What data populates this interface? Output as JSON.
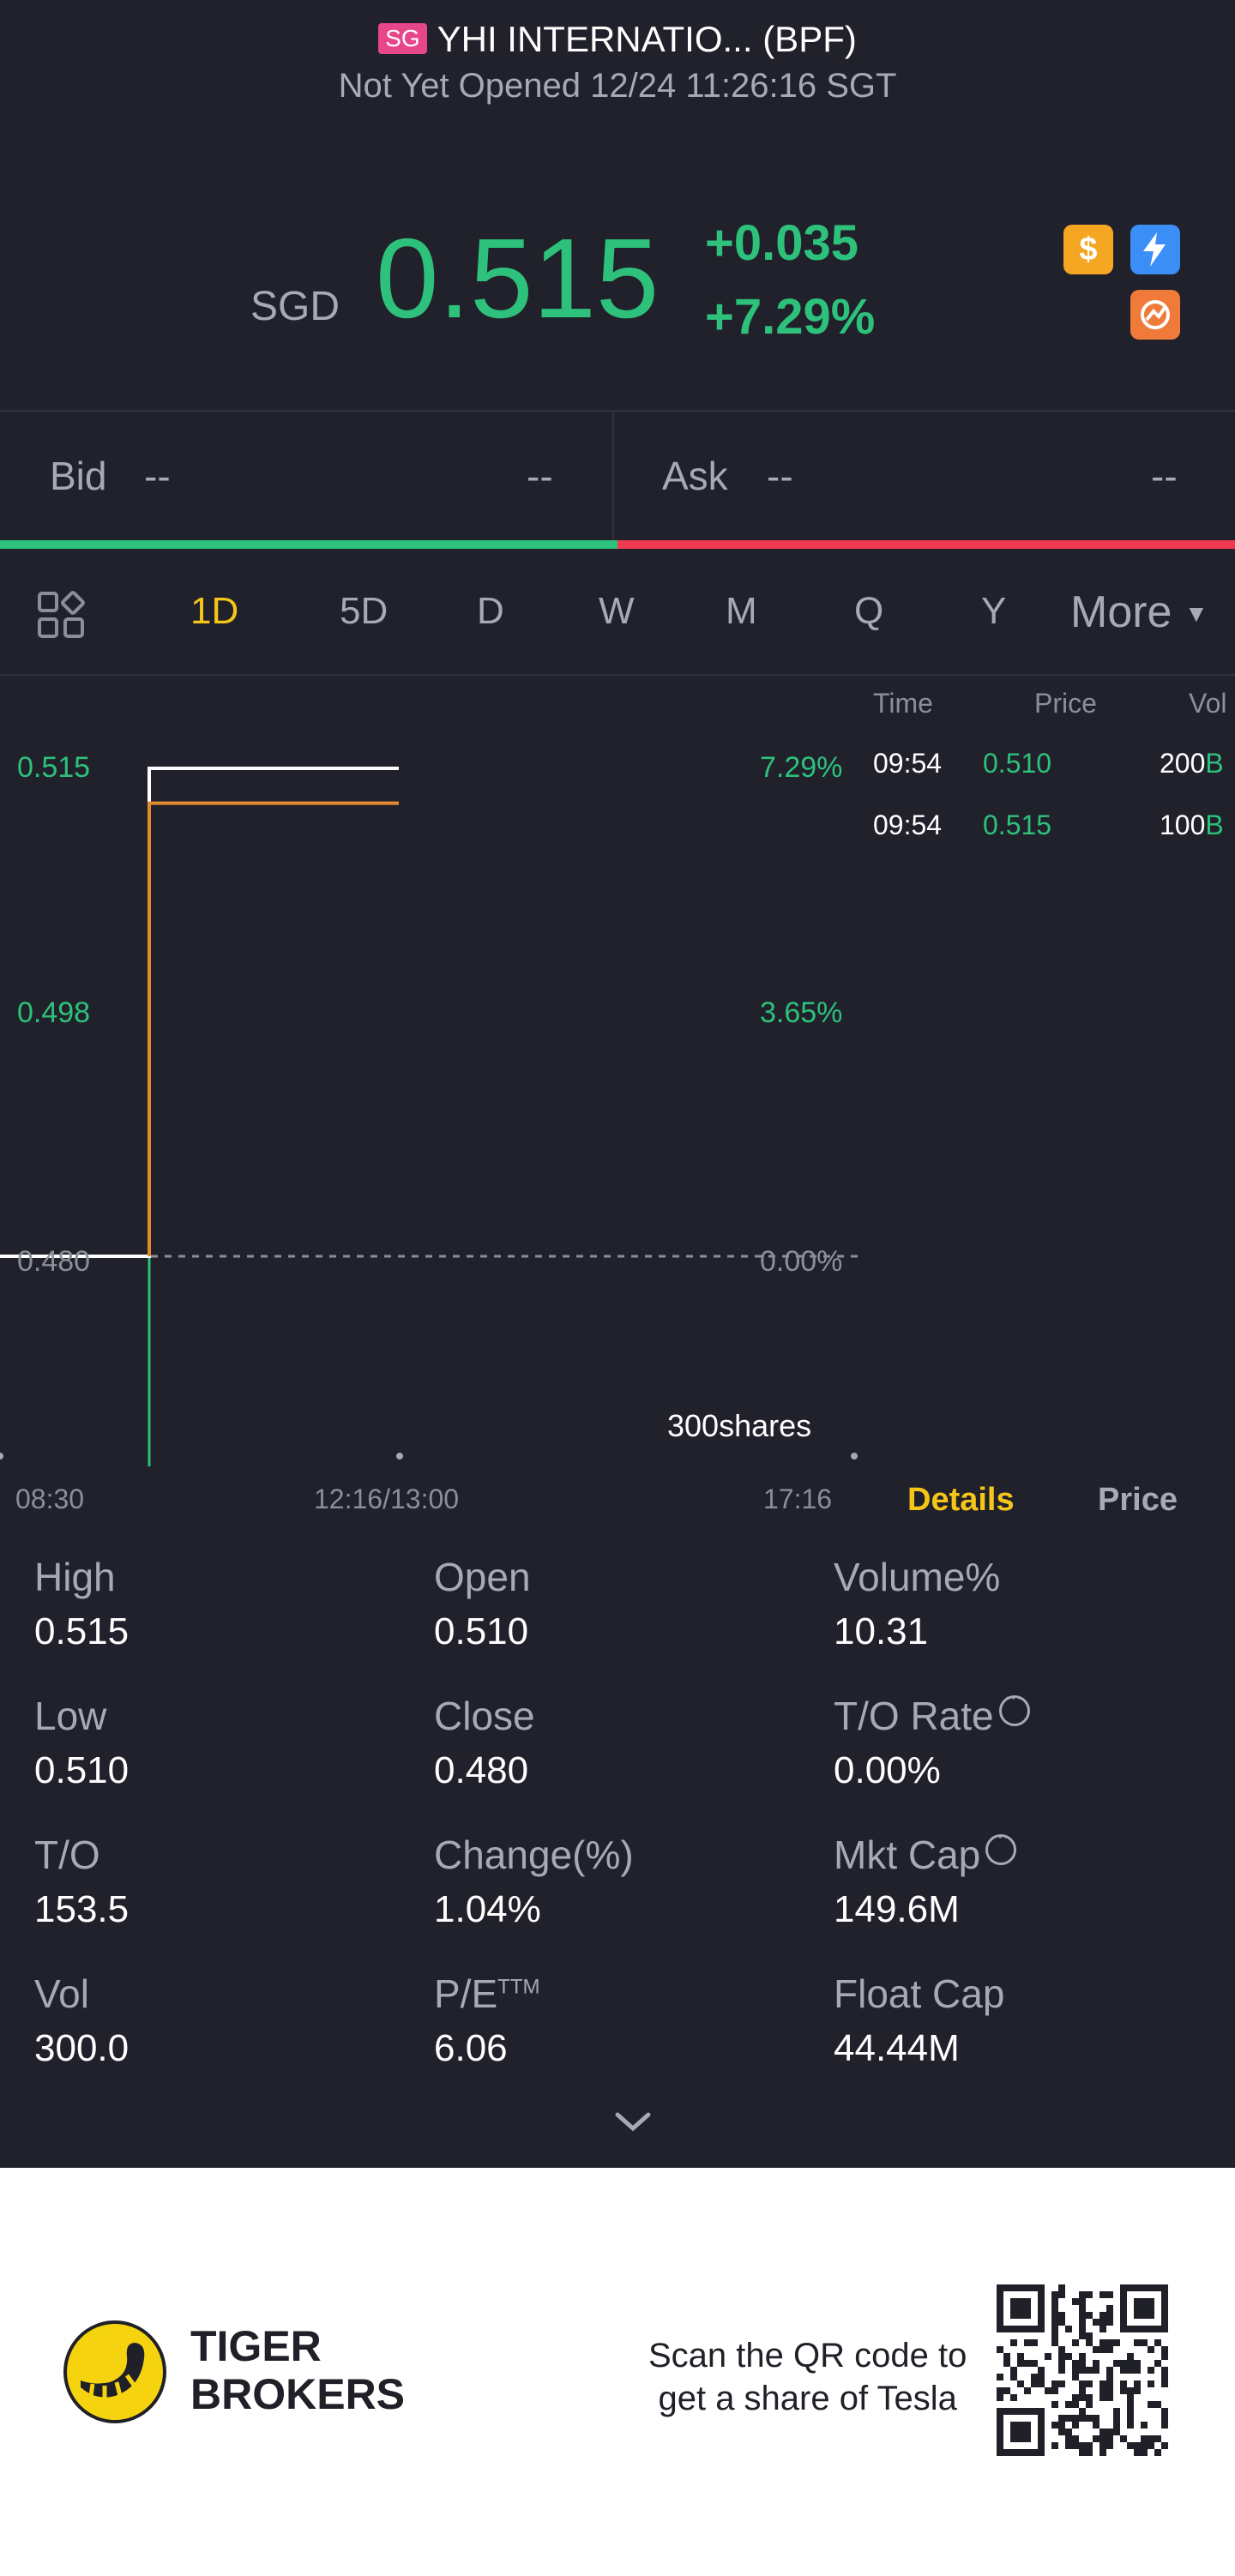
{
  "header": {
    "market_badge": "SG",
    "title": "YHI INTERNATIO... (BPF)",
    "status": "Not Yet Opened 12/24 11:26:16 SGT"
  },
  "quote": {
    "currency": "SGD",
    "price": "0.515",
    "change": "+0.035",
    "change_pct": "+7.29%",
    "badge_icons": [
      "dollar-icon",
      "lightning-icon",
      "margin-icon"
    ],
    "up_color": "#2dc17b"
  },
  "bid_ask": {
    "bid_label": "Bid",
    "bid_price": "--",
    "bid_size": "--",
    "ask_label": "Ask",
    "ask_price": "--",
    "ask_size": "--",
    "bid_ratio": 0.5
  },
  "period_tabs": {
    "items": [
      "1D",
      "5D",
      "D",
      "W",
      "M",
      "Q",
      "Y"
    ],
    "active": "1D",
    "more": "More"
  },
  "chart_data": {
    "type": "line",
    "title": "",
    "prev_close": 0.48,
    "y_ticks": [
      "0.515",
      "0.498",
      "0.480"
    ],
    "pct_ticks": [
      "7.29%",
      "3.65%",
      "0.00%"
    ],
    "x_ticks": [
      "08:30",
      "12:16/13:00",
      "17:16"
    ],
    "series": [
      {
        "values": [
          {
            "t": "08:30",
            "v": 0.48
          },
          {
            "t": "09:54",
            "v": 0.48
          },
          {
            "t": "09:54",
            "v": 0.515
          },
          {
            "t": "12:16",
            "v": 0.515
          }
        ],
        "color": "#ffffff"
      },
      {
        "values": [
          {
            "t": "09:54",
            "v": 0.48
          },
          {
            "t": "09:54",
            "v": 0.5125
          },
          {
            "t": "12:16",
            "v": 0.5125
          }
        ],
        "color": "#e38a2f"
      }
    ],
    "volume_label": "300shares",
    "ylim": [
      0.465,
      0.52
    ]
  },
  "trades": {
    "headers": [
      "Time",
      "Price",
      "Vol"
    ],
    "rows": [
      {
        "time": "09:54",
        "price": "0.510",
        "vol": "200",
        "side": "B"
      },
      {
        "time": "09:54",
        "price": "0.515",
        "vol": "100",
        "side": "B"
      }
    ]
  },
  "panel_tabs": {
    "details": "Details",
    "price": "Price"
  },
  "details": [
    {
      "label": "High",
      "value": "0.515"
    },
    {
      "label": "Open",
      "value": "0.510"
    },
    {
      "label": "Volume%",
      "value": "10.31"
    },
    {
      "label": "Low",
      "value": "0.510"
    },
    {
      "label": "Close",
      "value": "0.480"
    },
    {
      "label": "T/O Rate",
      "value": "0.00%"
    },
    {
      "label": "T/O",
      "value": "153.5"
    },
    {
      "label": "Change(%)",
      "value": "1.04%"
    },
    {
      "label": "Mkt Cap",
      "value": "149.6M"
    },
    {
      "label": "Vol",
      "value": "300.0"
    },
    {
      "label": "P/E",
      "sup": "TTM",
      "value": "6.06"
    },
    {
      "label": "Float Cap",
      "value": "44.44M"
    }
  ],
  "footer": {
    "brand_line1": "TIGER",
    "brand_line2": "BROKERS",
    "qr_text_line1": "Scan the QR code to",
    "qr_text_line2": "get a share of Tesla"
  }
}
